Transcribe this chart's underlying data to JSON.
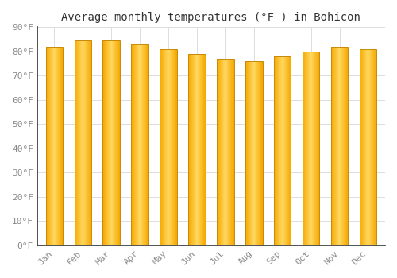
{
  "title": "Average monthly temperatures (°F ) in Bohicon",
  "months": [
    "Jan",
    "Feb",
    "Mar",
    "Apr",
    "May",
    "Jun",
    "Jul",
    "Aug",
    "Sep",
    "Oct",
    "Nov",
    "Dec"
  ],
  "values": [
    82,
    85,
    85,
    83,
    81,
    79,
    77,
    76,
    78,
    80,
    82,
    81
  ],
  "ylim": [
    0,
    90
  ],
  "yticks": [
    0,
    10,
    20,
    30,
    40,
    50,
    60,
    70,
    80,
    90
  ],
  "bar_color_center": "#FFD060",
  "bar_color_edge": "#F5A800",
  "bar_edge_color": "#C8890A",
  "background_color": "#FFFFFF",
  "grid_color": "#DDDDDD",
  "title_fontsize": 10,
  "tick_fontsize": 8,
  "bar_width": 0.6
}
